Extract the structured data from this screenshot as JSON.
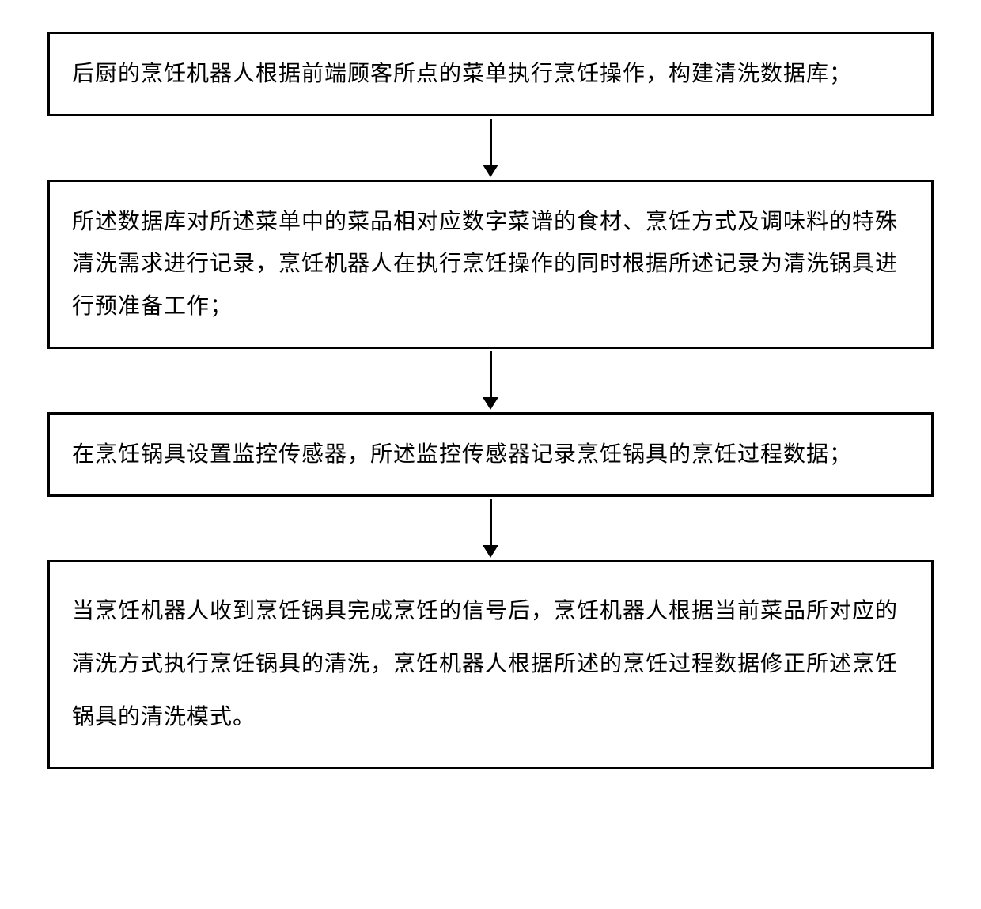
{
  "flowchart": {
    "type": "flowchart",
    "direction": "vertical",
    "nodes": [
      {
        "id": "step1",
        "text": "后厨的烹饪机器人根据前端顾客所点的菜单执行烹饪操作，构建清洗数据库；"
      },
      {
        "id": "step2",
        "text": "所述数据库对所述菜单中的菜品相对应数字菜谱的食材、烹饪方式及调味料的特殊清洗需求进行记录，烹饪机器人在执行烹饪操作的同时根据所述记录为清洗锅具进行预准备工作；"
      },
      {
        "id": "step3",
        "text": "在烹饪锅具设置监控传感器，所述监控传感器记录烹饪锅具的烹饪过程数据；"
      },
      {
        "id": "step4",
        "text": "当烹饪机器人收到烹饪锅具完成烹饪的信号后，烹饪机器人根据当前菜品所对应的清洗方式执行烹饪锅具的清洗，烹饪机器人根据所述的烹饪过程数据修正所述烹饪锅具的清洗模式。"
      }
    ],
    "edges": [
      {
        "from": "step1",
        "to": "step2"
      },
      {
        "from": "step2",
        "to": "step3"
      },
      {
        "from": "step3",
        "to": "step4"
      }
    ],
    "styling": {
      "box_border_color": "#000000",
      "box_border_width": 3,
      "box_background": "#ffffff",
      "text_color": "#000000",
      "font_size": 28,
      "arrow_color": "#000000",
      "arrow_line_width": 3,
      "canvas_background": "#ffffff"
    }
  }
}
